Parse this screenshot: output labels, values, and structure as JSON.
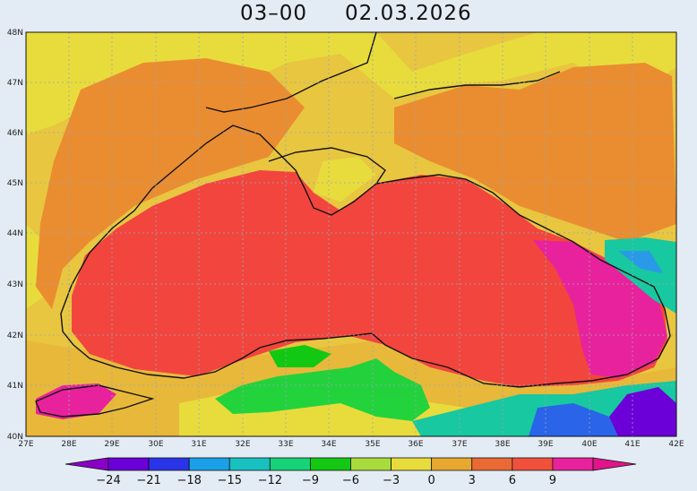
{
  "title": {
    "time": "03–00",
    "date": "02.03.2026"
  },
  "axes": {
    "lat_labels": [
      "48N",
      "47N",
      "46N",
      "45N",
      "44N",
      "43N",
      "42N",
      "41N",
      "40N"
    ],
    "lon_labels": [
      "27E",
      "28E",
      "29E",
      "30E",
      "31E",
      "32E",
      "33E",
      "34E",
      "35E",
      "36E",
      "37E",
      "38E",
      "39E",
      "40E",
      "41E",
      "42E"
    ]
  },
  "colorbar": {
    "labels": [
      "−24",
      "−21",
      "−18",
      "−15",
      "−12",
      "−9",
      "−6",
      "−3",
      "0",
      "3",
      "6",
      "9"
    ],
    "colors": [
      "#8a00c8",
      "#6c00d8",
      "#2a34e8",
      "#1aa0e8",
      "#18c0c0",
      "#16d278",
      "#12c812",
      "#a8dc3c",
      "#e8dc3c",
      "#e8a830",
      "#ea6a36",
      "#f0503c",
      "#e8229c",
      "#e2148c"
    ]
  },
  "palette": {
    "sea_hot": "#f2453e",
    "warm": "#ea8d30",
    "mild": "#e8b83a",
    "neutral": "#e8dc3c",
    "cool_green": "#18d23c",
    "cool_cyan": "#18c8a0",
    "cold_blue": "#2a64e8",
    "cold_violet": "#8a10d0",
    "magenta": "#e8229c",
    "background": "#e3ecf4"
  }
}
